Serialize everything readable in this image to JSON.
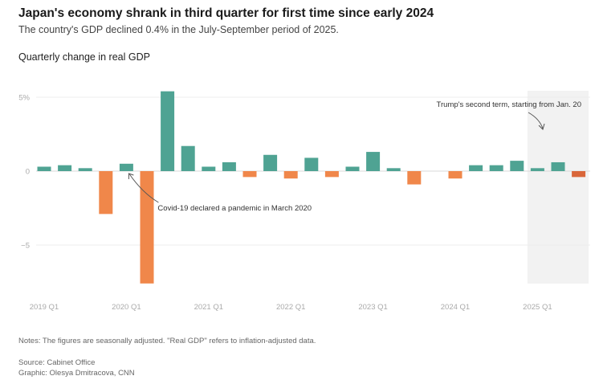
{
  "header": {
    "title": "Japan's economy shrank in third quarter for first time since early 2024",
    "subtitle": "The country's GDP declined 0.4% in the July-September period of 2025.",
    "chart_label": "Quarterly change in real GDP"
  },
  "footer": {
    "notes": "Notes: The figures are seasonally adjusted. \"Real GDP\" refers to inflation-adjusted data.",
    "source": "Source: Cabinet Office",
    "graphic": "Graphic: Olesya Dmitracova, CNN"
  },
  "colors": {
    "positive": "#4fa393",
    "negative": "#f0874a",
    "latest_negative": "#d9663a",
    "highlight_band": "#f2f2f2",
    "gridline": "#ececec"
  },
  "chart_data": {
    "type": "bar",
    "title": "Quarterly change in real GDP",
    "xlabel": "",
    "ylabel": "",
    "ylim": [
      -8,
      6
    ],
    "yticks": [
      {
        "value": 5,
        "label": "5%"
      },
      {
        "value": 0,
        "label": "0"
      },
      {
        "value": -5,
        "label": "-5"
      }
    ],
    "grid": true,
    "categories": [
      "2019 Q1",
      "2019 Q2",
      "2019 Q3",
      "2019 Q4",
      "2020 Q1",
      "2020 Q2",
      "2020 Q3",
      "2020 Q4",
      "2021 Q1",
      "2021 Q2",
      "2021 Q3",
      "2021 Q4",
      "2022 Q1",
      "2022 Q2",
      "2022 Q3",
      "2022 Q4",
      "2023 Q1",
      "2023 Q2",
      "2023 Q3",
      "2023 Q4",
      "2024 Q1",
      "2024 Q2",
      "2024 Q3",
      "2024 Q4",
      "2025 Q1",
      "2025 Q2",
      "2025 Q3"
    ],
    "values": [
      0.3,
      0.4,
      0.2,
      -2.9,
      0.5,
      -7.6,
      5.4,
      1.7,
      0.3,
      0.6,
      -0.4,
      1.1,
      -0.5,
      0.9,
      -0.4,
      0.3,
      1.3,
      0.2,
      -0.9,
      0.0,
      -0.5,
      0.4,
      0.4,
      0.7,
      0.2,
      0.6,
      -0.4
    ],
    "xtick_labels": [
      "2019 Q1",
      "2020 Q1",
      "2021 Q1",
      "2022 Q1",
      "2023 Q1",
      "2024 Q1",
      "2025 Q1"
    ],
    "highlight_range": {
      "from": "2025 Q1",
      "to": "2025 Q3",
      "label": "Trump's second term, starting from Jan. 20"
    },
    "annotations": [
      {
        "text": "Covid-19 declared a pandemic in March 2020",
        "target": "2020 Q1"
      },
      {
        "text": "Trump's second term, starting from Jan. 20",
        "target": "2025 Q1"
      }
    ]
  }
}
